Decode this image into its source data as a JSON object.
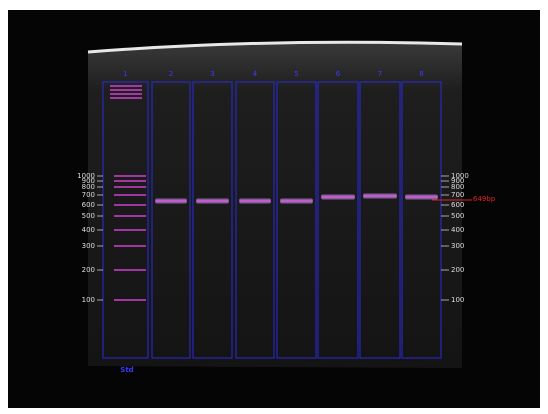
{
  "lanes": [
    "1",
    "2",
    "3",
    "4",
    "5",
    "6",
    "7",
    "8"
  ],
  "std_label": "Std",
  "ladder_left": [
    "1000",
    "900",
    "800",
    "700",
    "600",
    "500",
    "400",
    "300",
    "200",
    "100"
  ],
  "ladder_right": [
    "1000",
    "900",
    "800",
    "700",
    "600",
    "500",
    "400",
    "300",
    "200",
    "100"
  ],
  "band_label": "649bp"
}
